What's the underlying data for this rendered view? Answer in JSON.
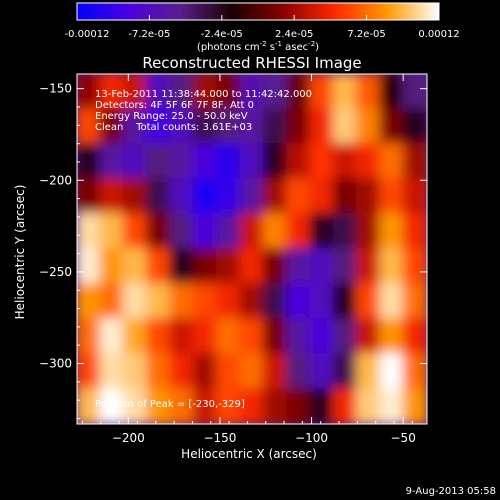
{
  "colorbar": {
    "tick_labels": [
      "-0.00012",
      "-7.2e-05",
      "-2.4e-05",
      "2.4e-05",
      "7.2e-05",
      "0.00012"
    ],
    "unit_base": "(photons cm",
    "unit_exp1": "-2",
    "unit_mid": " s",
    "unit_exp2": "-1",
    "unit_tail": " asec",
    "unit_exp3": "-2",
    "unit_close": ")",
    "range": [
      -0.00012,
      0.00012
    ],
    "colors": [
      "#0000ff",
      "#4b00e0",
      "#5a1e8c",
      "#1a0000",
      "#8a0000",
      "#ff2a00",
      "#ff9a00",
      "#ffffff"
    ]
  },
  "chart_data": {
    "type": "heatmap",
    "title": "Reconstructed RHESSI Image",
    "xlabel": "Heliocentric X (arcsec)",
    "ylabel": "Heliocentric Y (arcsec)",
    "xlim": [
      -228,
      -37
    ],
    "ylim": [
      -333,
      -142
    ],
    "xticks": [
      -200,
      -150,
      -100,
      -50
    ],
    "yticks": [
      -150,
      -200,
      -250,
      -300
    ],
    "annotations": [
      "13-Feb-2011 11:38:44.000 to 11:42:42.000",
      "Detectors: 4F 5F 6F 7F 8F, Att 0",
      "Energy Range: 25.0 - 50.0 keV",
      "Clean    Total counts: 3.61E+03"
    ],
    "peak_label": "Position of Peak = [-230,-329]",
    "peak": [
      -230,
      -329
    ],
    "grid_rows": [
      [
        0.15,
        0.4,
        0.3,
        -0.6,
        -0.4,
        0.2,
        0.1,
        -0.55,
        -0.45,
        0.05,
        0.5,
        0.8,
        0.55,
        -0.1,
        -0.4
      ],
      [
        0.5,
        0.1,
        -0.5,
        -0.75,
        -0.6,
        -0.3,
        -0.4,
        -0.5,
        -0.3,
        0.1,
        0.4,
        0.85,
        0.65,
        0.1,
        -0.2
      ],
      [
        -0.2,
        -0.5,
        -0.6,
        -0.4,
        -0.5,
        -0.7,
        -0.85,
        -0.6,
        -0.2,
        0.25,
        0.45,
        0.3,
        0.4,
        0.6,
        0.2
      ],
      [
        0.1,
        0.3,
        0.2,
        -0.3,
        -0.6,
        -0.9,
        -0.8,
        -0.5,
        0.2,
        0.5,
        0.4,
        0.1,
        0.2,
        0.5,
        0.3
      ],
      [
        0.9,
        0.8,
        0.5,
        0.1,
        -0.4,
        -0.7,
        -0.5,
        0.3,
        0.65,
        0.4,
        -0.2,
        -0.3,
        0.2,
        0.7,
        0.4
      ],
      [
        0.95,
        0.7,
        0.8,
        0.5,
        -0.2,
        0.1,
        0.2,
        0.4,
        0.1,
        -0.5,
        -0.6,
        -0.4,
        0.3,
        0.8,
        0.5
      ],
      [
        0.7,
        0.6,
        0.9,
        0.8,
        0.6,
        0.5,
        0.4,
        0.2,
        -0.3,
        -0.7,
        -0.6,
        -0.2,
        0.5,
        0.9,
        0.6
      ],
      [
        0.6,
        0.95,
        0.75,
        0.5,
        0.3,
        0.4,
        0.6,
        0.5,
        0.1,
        -0.5,
        -0.7,
        -0.4,
        0.3,
        0.7,
        0.4
      ],
      [
        0.5,
        0.9,
        0.85,
        0.6,
        0.4,
        0.2,
        0.5,
        0.6,
        0.3,
        -0.4,
        -0.6,
        -0.3,
        0.8,
        1.0,
        0.6
      ],
      [
        0.8,
        1.0,
        0.9,
        0.7,
        0.6,
        0.3,
        0.5,
        0.4,
        0.2,
        0.1,
        -0.2,
        0.4,
        0.85,
        0.95,
        0.7
      ]
    ]
  },
  "footer": {
    "timestamp": "9-Aug-2013 05:58"
  }
}
